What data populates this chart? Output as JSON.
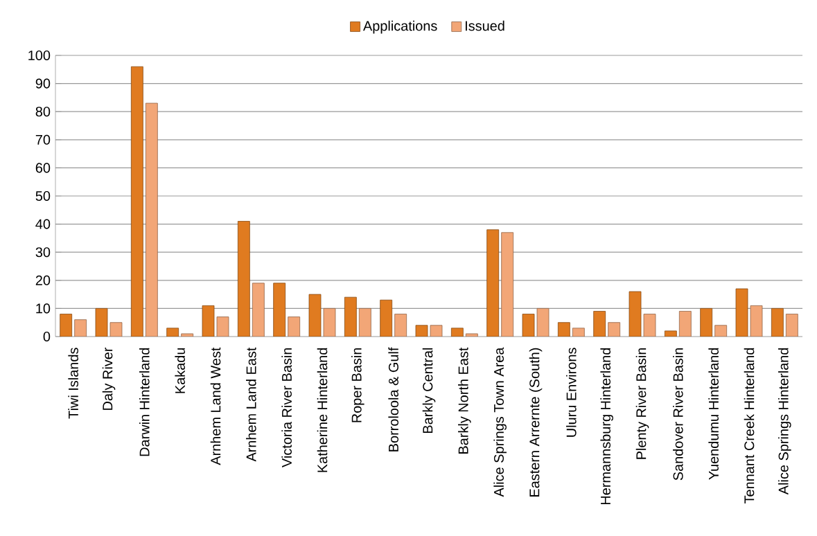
{
  "chart_data": {
    "type": "bar",
    "categories": [
      "Tiwi Islands",
      "Daly River",
      "Darwin Hinterland",
      "Kakadu",
      "Arnhem Land West",
      "Arnhem Land East",
      "Victoria River Basin",
      "Katherine Hinterland",
      "Roper Basin",
      "Borroloola & Gulf",
      "Barkly Central",
      "Barkly North East",
      "Alice Springs Town Area",
      "Eastern Arrernte  (South)",
      "Uluru Environs",
      "Hermannsburg Hinterland",
      "Plenty River Basin",
      "Sandover River Basin",
      "Yuendumu Hinterland",
      "Tennant Creek Hinterland",
      "Alice Springs Hinterland"
    ],
    "series": [
      {
        "name": "Applications",
        "color": "#e07b20",
        "values": [
          8,
          10,
          96,
          3,
          11,
          41,
          19,
          15,
          14,
          13,
          4,
          3,
          38,
          8,
          5,
          9,
          16,
          2,
          10,
          17,
          10
        ]
      },
      {
        "name": "Issued",
        "color": "#f2a677",
        "values": [
          6,
          5,
          83,
          1,
          7,
          19,
          7,
          10,
          10,
          8,
          4,
          1,
          37,
          10,
          3,
          5,
          8,
          9,
          4,
          11,
          8
        ]
      }
    ],
    "ylim": [
      0,
      100
    ],
    "yticks": [
      0,
      10,
      20,
      30,
      40,
      50,
      60,
      70,
      80,
      90,
      100
    ],
    "grid": "y",
    "legend": "top"
  }
}
